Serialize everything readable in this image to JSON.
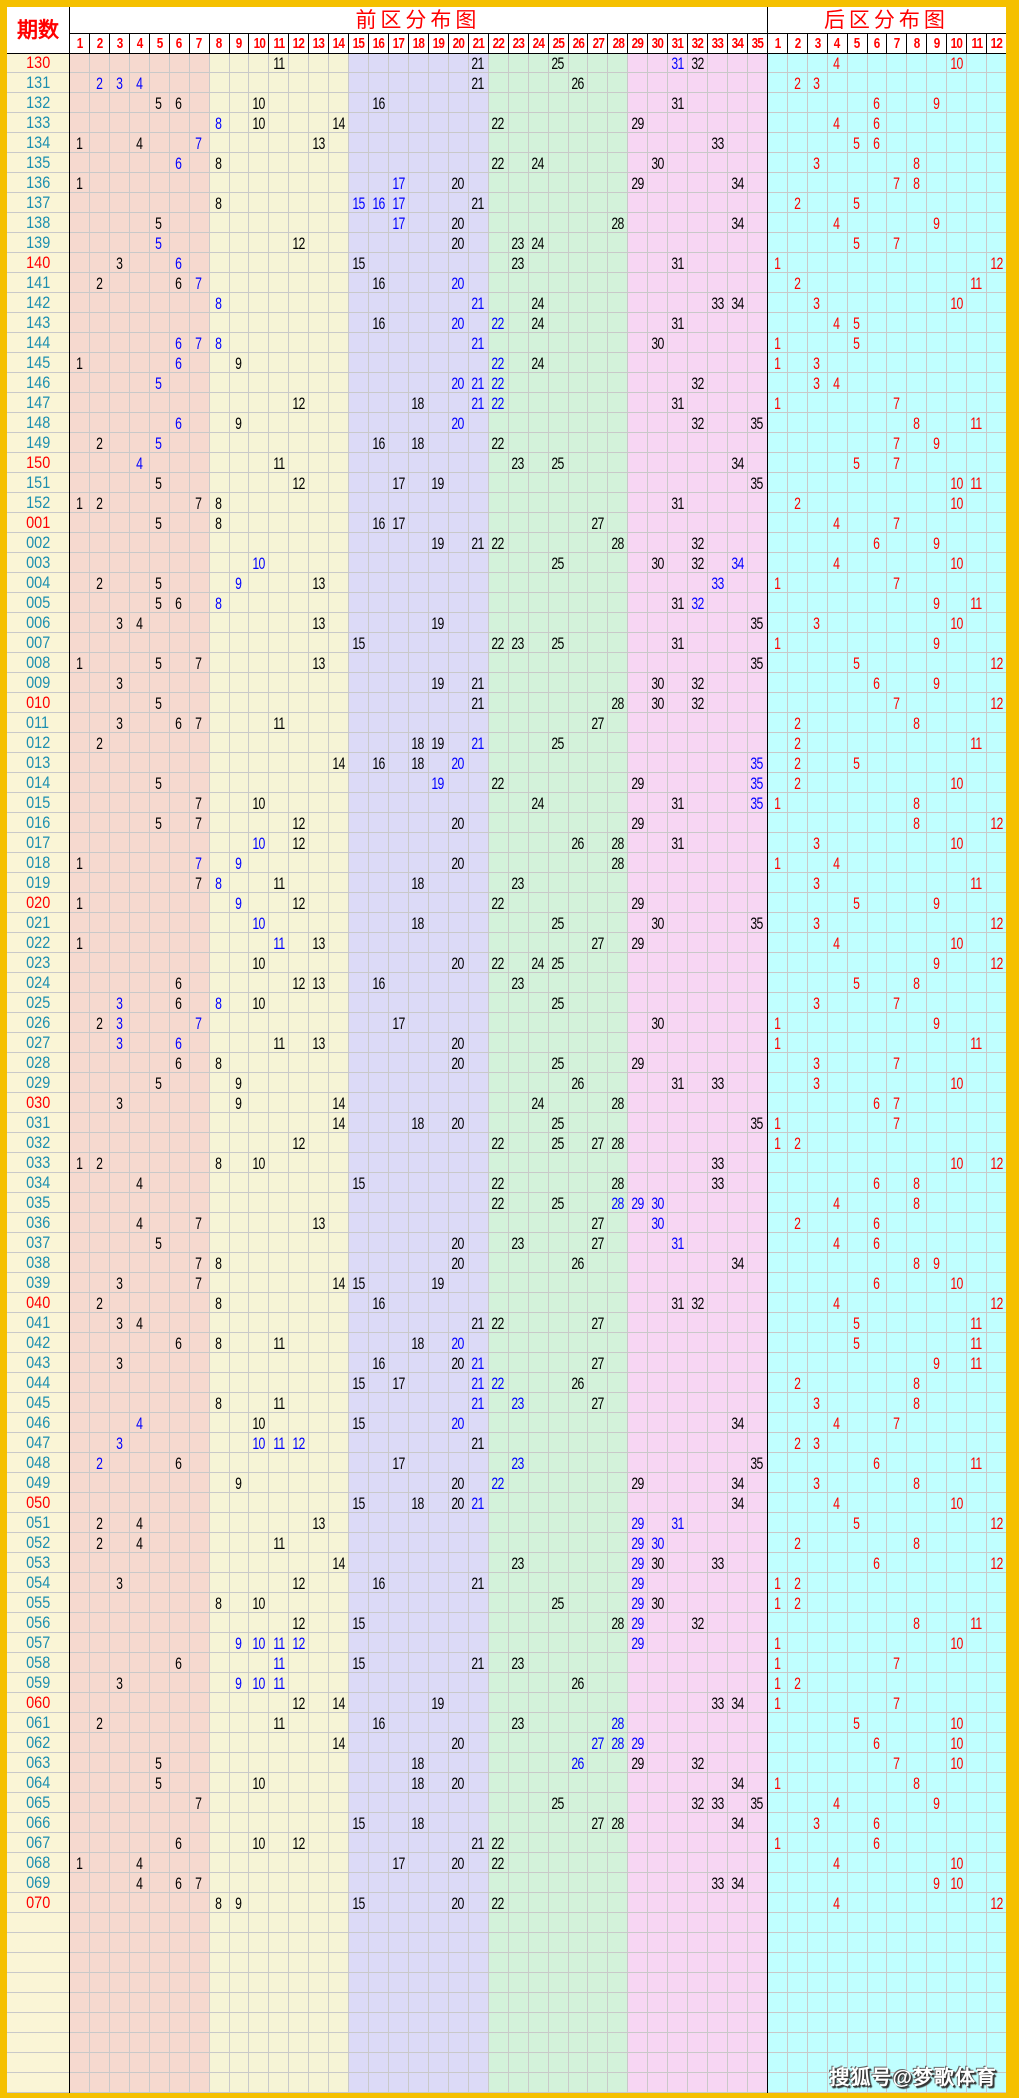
{
  "header": {
    "issue_label": "期数",
    "front_title": "前区分布图",
    "back_title": "后区分布图"
  },
  "front_columns": 35,
  "back_columns": 12,
  "colors": {
    "border": "#f5c000",
    "label_bg": "#faf5d6",
    "front_bands": [
      "#f6d9cf",
      "#f6f4d6",
      "#dcdaf7",
      "#d3f2da",
      "#f7d6f3"
    ],
    "back_bg": "#c0ffff",
    "header_text": "#ff0000",
    "number": "#000000",
    "highlight": "#0000ff",
    "back_number": "#ff0000",
    "issue_text": "#1b8fb0",
    "issue_text_marked": "#ff0000"
  },
  "rows": [
    {
      "issue": "130",
      "red": true,
      "front": [
        11,
        21,
        25,
        31,
        32
      ],
      "blue": [
        31
      ],
      "back": [
        4,
        10
      ]
    },
    {
      "issue": "131",
      "front": [
        2,
        3,
        4,
        21,
        26
      ],
      "blue": [
        2,
        3,
        4
      ],
      "back": [
        2,
        3
      ]
    },
    {
      "issue": "132",
      "front": [
        5,
        6,
        10,
        16,
        31
      ],
      "blue": [],
      "back": [
        6,
        9
      ]
    },
    {
      "issue": "133",
      "front": [
        8,
        10,
        14,
        22,
        29
      ],
      "blue": [
        8
      ],
      "back": [
        4,
        6
      ]
    },
    {
      "issue": "134",
      "front": [
        1,
        4,
        7,
        13,
        33
      ],
      "blue": [
        7
      ],
      "back": [
        5,
        6
      ]
    },
    {
      "issue": "135",
      "front": [
        6,
        8,
        22,
        24,
        30
      ],
      "blue": [
        6
      ],
      "back": [
        3,
        8
      ]
    },
    {
      "issue": "136",
      "front": [
        1,
        17,
        20,
        29,
        34
      ],
      "blue": [
        17
      ],
      "back": [
        7,
        8
      ]
    },
    {
      "issue": "137",
      "front": [
        8,
        15,
        16,
        17,
        21
      ],
      "blue": [
        15,
        16,
        17
      ],
      "back": [
        2,
        5
      ]
    },
    {
      "issue": "138",
      "front": [
        5,
        17,
        20,
        28,
        34
      ],
      "blue": [
        17
      ],
      "back": [
        4,
        9
      ]
    },
    {
      "issue": "139",
      "front": [
        5,
        12,
        20,
        23,
        24
      ],
      "blue": [
        5
      ],
      "back": [
        5,
        7
      ]
    },
    {
      "issue": "140",
      "red": true,
      "front": [
        3,
        6,
        15,
        23,
        31
      ],
      "blue": [
        6
      ],
      "back": [
        1,
        12
      ]
    },
    {
      "issue": "141",
      "front": [
        2,
        6,
        7,
        16,
        20
      ],
      "blue": [
        7,
        20
      ],
      "back": [
        2,
        11
      ]
    },
    {
      "issue": "142",
      "front": [
        8,
        21,
        24,
        33,
        34
      ],
      "blue": [
        8,
        21
      ],
      "back": [
        3,
        10
      ]
    },
    {
      "issue": "143",
      "front": [
        16,
        20,
        22,
        24,
        31
      ],
      "blue": [
        20,
        22
      ],
      "back": [
        4,
        5
      ]
    },
    {
      "issue": "144",
      "front": [
        6,
        7,
        8,
        21,
        30
      ],
      "blue": [
        6,
        7,
        8,
        21
      ],
      "back": [
        1,
        5
      ]
    },
    {
      "issue": "145",
      "front": [
        1,
        6,
        9,
        22,
        24
      ],
      "blue": [
        6,
        22
      ],
      "back": [
        1,
        3
      ]
    },
    {
      "issue": "146",
      "front": [
        5,
        20,
        21,
        22,
        32
      ],
      "blue": [
        5,
        20,
        21,
        22
      ],
      "back": [
        3,
        4
      ]
    },
    {
      "issue": "147",
      "front": [
        12,
        18,
        21,
        22,
        31
      ],
      "blue": [
        21,
        22
      ],
      "back": [
        1,
        7
      ]
    },
    {
      "issue": "148",
      "front": [
        6,
        9,
        20,
        32,
        35
      ],
      "blue": [
        6,
        20
      ],
      "back": [
        8,
        11
      ]
    },
    {
      "issue": "149",
      "front": [
        2,
        5,
        16,
        18,
        22
      ],
      "blue": [
        5
      ],
      "back": [
        7,
        9
      ]
    },
    {
      "issue": "150",
      "red": true,
      "front": [
        4,
        11,
        23,
        25,
        34
      ],
      "blue": [
        4
      ],
      "back": [
        5,
        7
      ]
    },
    {
      "issue": "151",
      "front": [
        5,
        12,
        17,
        19,
        35
      ],
      "blue": [],
      "back": [
        10,
        11
      ]
    },
    {
      "issue": "152",
      "front": [
        1,
        2,
        7,
        8,
        31
      ],
      "blue": [],
      "back": [
        2,
        10
      ]
    },
    {
      "issue": "001",
      "red": true,
      "front": [
        5,
        8,
        16,
        17,
        27
      ],
      "blue": [],
      "back": [
        4,
        7
      ]
    },
    {
      "issue": "002",
      "front": [
        19,
        21,
        22,
        28,
        32
      ],
      "blue": [],
      "back": [
        6,
        9
      ]
    },
    {
      "issue": "003",
      "front": [
        10,
        25,
        30,
        32,
        34
      ],
      "blue": [
        10,
        34
      ],
      "back": [
        4,
        10
      ]
    },
    {
      "issue": "004",
      "front": [
        2,
        5,
        9,
        13,
        33
      ],
      "blue": [
        9,
        33
      ],
      "back": [
        1,
        7
      ]
    },
    {
      "issue": "005",
      "front": [
        5,
        6,
        8,
        31,
        32
      ],
      "blue": [
        8,
        32
      ],
      "back": [
        9,
        11
      ]
    },
    {
      "issue": "006",
      "front": [
        3,
        4,
        13,
        19,
        35
      ],
      "blue": [],
      "back": [
        3,
        10
      ]
    },
    {
      "issue": "007",
      "front": [
        15,
        22,
        23,
        25,
        31
      ],
      "blue": [],
      "back": [
        1,
        9
      ]
    },
    {
      "issue": "008",
      "front": [
        1,
        5,
        7,
        13,
        35
      ],
      "blue": [],
      "back": [
        5,
        12
      ]
    },
    {
      "issue": "009",
      "front": [
        3,
        19,
        21,
        30,
        32
      ],
      "blue": [],
      "back": [
        6,
        9
      ]
    },
    {
      "issue": "010",
      "red": true,
      "front": [
        5,
        21,
        28,
        30,
        32
      ],
      "blue": [],
      "back": [
        7,
        12
      ]
    },
    {
      "issue": "011",
      "front": [
        3,
        6,
        7,
        11,
        27
      ],
      "blue": [],
      "back": [
        2,
        8
      ]
    },
    {
      "issue": "012",
      "front": [
        2,
        18,
        19,
        21,
        25
      ],
      "blue": [
        21
      ],
      "back": [
        2,
        11
      ]
    },
    {
      "issue": "013",
      "front": [
        14,
        16,
        18,
        20,
        35
      ],
      "blue": [
        20,
        35
      ],
      "back": [
        2,
        5
      ]
    },
    {
      "issue": "014",
      "front": [
        5,
        19,
        22,
        29,
        35
      ],
      "blue": [
        19,
        35
      ],
      "back": [
        2,
        10
      ]
    },
    {
      "issue": "015",
      "front": [
        7,
        10,
        24,
        31,
        35
      ],
      "blue": [
        35
      ],
      "back": [
        1,
        8
      ]
    },
    {
      "issue": "016",
      "front": [
        5,
        7,
        12,
        20,
        29
      ],
      "blue": [],
      "back": [
        8,
        12
      ]
    },
    {
      "issue": "017",
      "front": [
        10,
        12,
        26,
        28,
        31
      ],
      "blue": [
        10
      ],
      "back": [
        3,
        10
      ]
    },
    {
      "issue": "018",
      "front": [
        1,
        7,
        9,
        20,
        28
      ],
      "blue": [
        7,
        9
      ],
      "back": [
        1,
        4
      ]
    },
    {
      "issue": "019",
      "front": [
        7,
        8,
        11,
        18,
        23
      ],
      "blue": [
        8
      ],
      "back": [
        3,
        11
      ]
    },
    {
      "issue": "020",
      "red": true,
      "front": [
        1,
        9,
        12,
        22,
        29
      ],
      "blue": [
        9
      ],
      "back": [
        5,
        9
      ]
    },
    {
      "issue": "021",
      "front": [
        10,
        18,
        25,
        30,
        35
      ],
      "blue": [
        10
      ],
      "back": [
        3,
        12
      ]
    },
    {
      "issue": "022",
      "front": [
        1,
        11,
        13,
        27,
        29
      ],
      "blue": [
        11
      ],
      "back": [
        4,
        10
      ]
    },
    {
      "issue": "023",
      "front": [
        10,
        20,
        22,
        24,
        25
      ],
      "blue": [],
      "back": [
        9,
        12
      ]
    },
    {
      "issue": "024",
      "front": [
        6,
        12,
        13,
        16,
        23
      ],
      "blue": [],
      "back": [
        5,
        8
      ]
    },
    {
      "issue": "025",
      "front": [
        3,
        6,
        8,
        10,
        25
      ],
      "blue": [
        3,
        8
      ],
      "back": [
        3,
        7
      ]
    },
    {
      "issue": "026",
      "front": [
        2,
        3,
        7,
        17,
        30
      ],
      "blue": [
        3,
        7
      ],
      "back": [
        1,
        9
      ]
    },
    {
      "issue": "027",
      "front": [
        3,
        6,
        11,
        13,
        20
      ],
      "blue": [
        3,
        6
      ],
      "back": [
        1,
        11
      ]
    },
    {
      "issue": "028",
      "front": [
        6,
        8,
        20,
        25,
        29
      ],
      "blue": [],
      "back": [
        3,
        7
      ]
    },
    {
      "issue": "029",
      "front": [
        5,
        9,
        26,
        31,
        33
      ],
      "blue": [],
      "back": [
        3,
        10
      ]
    },
    {
      "issue": "030",
      "red": true,
      "front": [
        3,
        9,
        14,
        24,
        28
      ],
      "blue": [],
      "back": [
        6,
        7
      ]
    },
    {
      "issue": "031",
      "front": [
        14,
        18,
        20,
        25,
        35
      ],
      "blue": [],
      "back": [
        1,
        7
      ]
    },
    {
      "issue": "032",
      "front": [
        12,
        22,
        25,
        27,
        28
      ],
      "blue": [],
      "back": [
        1,
        2
      ]
    },
    {
      "issue": "033",
      "front": [
        1,
        2,
        8,
        10,
        33
      ],
      "blue": [],
      "back": [
        10,
        12
      ]
    },
    {
      "issue": "034",
      "front": [
        4,
        15,
        22,
        28,
        33
      ],
      "blue": [],
      "back": [
        6,
        8
      ]
    },
    {
      "issue": "035",
      "front": [
        22,
        25,
        28,
        29,
        30
      ],
      "blue": [
        28,
        29,
        30
      ],
      "back": [
        4,
        8
      ]
    },
    {
      "issue": "036",
      "front": [
        4,
        7,
        13,
        27,
        30
      ],
      "blue": [
        30
      ],
      "back": [
        2,
        6
      ]
    },
    {
      "issue": "037",
      "front": [
        5,
        20,
        23,
        27,
        31
      ],
      "blue": [
        31
      ],
      "back": [
        4,
        6
      ]
    },
    {
      "issue": "038",
      "front": [
        7,
        8,
        20,
        26,
        34
      ],
      "blue": [],
      "back": [
        8,
        9
      ]
    },
    {
      "issue": "039",
      "front": [
        3,
        7,
        14,
        15,
        19
      ],
      "blue": [],
      "back": [
        6,
        10
      ]
    },
    {
      "issue": "040",
      "red": true,
      "front": [
        2,
        8,
        16,
        31,
        32
      ],
      "blue": [],
      "back": [
        4,
        12
      ]
    },
    {
      "issue": "041",
      "front": [
        3,
        4,
        21,
        22,
        27
      ],
      "blue": [],
      "back": [
        5,
        11
      ]
    },
    {
      "issue": "042",
      "front": [
        6,
        8,
        11,
        18,
        20
      ],
      "blue": [
        20
      ],
      "back": [
        5,
        11
      ]
    },
    {
      "issue": "043",
      "front": [
        3,
        16,
        20,
        21,
        27
      ],
      "blue": [
        21
      ],
      "back": [
        9,
        11
      ]
    },
    {
      "issue": "044",
      "front": [
        15,
        17,
        21,
        22,
        26
      ],
      "blue": [
        21,
        22
      ],
      "back": [
        2,
        8
      ]
    },
    {
      "issue": "045",
      "front": [
        8,
        11,
        21,
        23,
        27
      ],
      "blue": [
        21,
        23
      ],
      "back": [
        3,
        8
      ]
    },
    {
      "issue": "046",
      "front": [
        4,
        10,
        15,
        20,
        34
      ],
      "blue": [
        4,
        20
      ],
      "back": [
        4,
        7
      ]
    },
    {
      "issue": "047",
      "front": [
        3,
        10,
        11,
        12,
        21
      ],
      "blue": [
        3,
        10,
        11,
        12
      ],
      "back": [
        2,
        3
      ]
    },
    {
      "issue": "048",
      "front": [
        2,
        6,
        17,
        23,
        35
      ],
      "blue": [
        2,
        23
      ],
      "back": [
        6,
        11
      ]
    },
    {
      "issue": "049",
      "front": [
        9,
        20,
        22,
        29,
        34
      ],
      "blue": [
        22
      ],
      "back": [
        3,
        8
      ]
    },
    {
      "issue": "050",
      "red": true,
      "front": [
        15,
        18,
        20,
        21,
        34
      ],
      "blue": [
        21
      ],
      "back": [
        4,
        10
      ]
    },
    {
      "issue": "051",
      "front": [
        2,
        4,
        13,
        29,
        31
      ],
      "blue": [
        29,
        31
      ],
      "back": [
        5,
        12
      ]
    },
    {
      "issue": "052",
      "front": [
        2,
        4,
        11,
        29,
        30
      ],
      "blue": [
        29,
        30
      ],
      "back": [
        2,
        8
      ]
    },
    {
      "issue": "053",
      "front": [
        14,
        23,
        29,
        30,
        33
      ],
      "blue": [
        29
      ],
      "back": [
        6,
        12
      ]
    },
    {
      "issue": "054",
      "front": [
        3,
        12,
        16,
        21,
        29
      ],
      "blue": [
        29
      ],
      "back": [
        1,
        2
      ]
    },
    {
      "issue": "055",
      "front": [
        8,
        10,
        25,
        29,
        30
      ],
      "blue": [
        29
      ],
      "back": [
        1,
        2
      ]
    },
    {
      "issue": "056",
      "front": [
        12,
        15,
        28,
        29,
        32
      ],
      "blue": [
        29
      ],
      "back": [
        8,
        11
      ]
    },
    {
      "issue": "057",
      "front": [
        9,
        10,
        11,
        12,
        29
      ],
      "blue": [
        9,
        10,
        11,
        12,
        29
      ],
      "back": [
        1,
        10
      ]
    },
    {
      "issue": "058",
      "front": [
        6,
        11,
        15,
        21,
        23
      ],
      "blue": [
        11
      ],
      "back": [
        1,
        7
      ]
    },
    {
      "issue": "059",
      "front": [
        3,
        9,
        10,
        11,
        26
      ],
      "blue": [
        9,
        10,
        11
      ],
      "back": [
        1,
        2
      ]
    },
    {
      "issue": "060",
      "red": true,
      "front": [
        12,
        14,
        19,
        33,
        34
      ],
      "blue": [],
      "back": [
        1,
        7
      ]
    },
    {
      "issue": "061",
      "front": [
        2,
        11,
        16,
        23,
        28
      ],
      "blue": [
        28
      ],
      "back": [
        5,
        10
      ]
    },
    {
      "issue": "062",
      "front": [
        14,
        20,
        27,
        28,
        29
      ],
      "blue": [
        27,
        28,
        29
      ],
      "back": [
        6,
        10
      ]
    },
    {
      "issue": "063",
      "front": [
        5,
        18,
        26,
        29,
        32
      ],
      "blue": [
        26
      ],
      "back": [
        7,
        10
      ]
    },
    {
      "issue": "064",
      "front": [
        5,
        10,
        18,
        20,
        34
      ],
      "blue": [],
      "back": [
        1,
        8
      ]
    },
    {
      "issue": "065",
      "front": [
        7,
        25,
        32,
        33,
        35
      ],
      "blue": [],
      "back": [
        4,
        9
      ]
    },
    {
      "issue": "066",
      "front": [
        15,
        18,
        27,
        28,
        34
      ],
      "blue": [],
      "back": [
        3,
        6
      ]
    },
    {
      "issue": "067",
      "front": [
        6,
        10,
        12,
        21,
        22
      ],
      "blue": [],
      "back": [
        1,
        6
      ]
    },
    {
      "issue": "068",
      "front": [
        1,
        4,
        17,
        20,
        22
      ],
      "blue": [],
      "back": [
        4,
        10
      ]
    },
    {
      "issue": "069",
      "front": [
        4,
        6,
        7,
        33,
        34
      ],
      "blue": [],
      "back": [
        9,
        10
      ]
    },
    {
      "issue": "070",
      "red": true,
      "front": [
        8,
        9,
        15,
        20,
        22
      ],
      "blue": [],
      "back": [
        4,
        12
      ]
    }
  ],
  "watermark": "搜狐号@梦歌体育"
}
